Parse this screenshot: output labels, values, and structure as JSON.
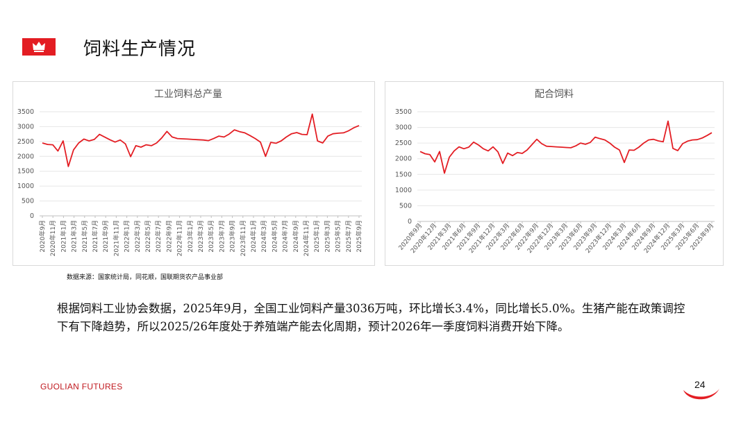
{
  "header": {
    "title": "饲料生产情况",
    "logo_icon": "crown-icon",
    "accent": "#e31d23"
  },
  "source_note": "数据来源：国家统计局，同花顺，国联期货农产品事业部",
  "paragraph": "根据饲料工业协会数据，2025年9月，全国工业饲料产量3036万吨，环比增长3.4%，同比增长5.0%。生猪产能在政策调控下有下降趋势，所以2025/26年度处于养殖端产能去化周期，预计2026年一季度饲料消费开始下降。",
  "footer": {
    "brand": "GUOLIAN FUTURES",
    "page_number": "24"
  },
  "chart_data": [
    {
      "type": "line",
      "title": "工业饲料总产量",
      "color": "#e31d23",
      "ylim": [
        0,
        3500
      ],
      "yticks": [
        0,
        500,
        1000,
        1500,
        2000,
        2500,
        3000,
        3500
      ],
      "xtick_labels": [
        "2020年9月",
        "2020年11月",
        "2021年1月",
        "2021年3月",
        "2021年5月",
        "2021年7月",
        "2021年9月",
        "2021年11月",
        "2022年1月",
        "2022年3月",
        "2022年5月",
        "2022年7月",
        "2022年9月",
        "2022年11月",
        "2023年1月",
        "2023年3月",
        "2023年5月",
        "2023年7月",
        "2023年9月",
        "2023年11月",
        "2024年1月",
        "2024年3月",
        "2024年5月",
        "2024年7月",
        "2024年9月",
        "2024年11月",
        "2025年1月",
        "2025年3月",
        "2025年5月",
        "2025年7月",
        "2025年9月"
      ],
      "values": [
        2450,
        2400,
        2390,
        2180,
        2520,
        1660,
        2220,
        2450,
        2580,
        2520,
        2570,
        2740,
        2650,
        2560,
        2480,
        2550,
        2420,
        1990,
        2360,
        2310,
        2390,
        2360,
        2450,
        2620,
        2840,
        2650,
        2600,
        2590,
        2580,
        2570,
        2560,
        2550,
        2530,
        2600,
        2680,
        2650,
        2750,
        2890,
        2830,
        2790,
        2700,
        2600,
        2480,
        2000,
        2470,
        2440,
        2520,
        2650,
        2760,
        2800,
        2740,
        2730,
        3420,
        2520,
        2450,
        2680,
        2760,
        2780,
        2790,
        2860,
        2960,
        3036
      ]
    },
    {
      "type": "line",
      "title": "配合饲料",
      "color": "#e31d23",
      "ylim": [
        0,
        3500
      ],
      "yticks": [
        0,
        500,
        1000,
        1500,
        2000,
        2500,
        3000,
        3500
      ],
      "xtick_labels": [
        "2020年9月",
        "2020年12月",
        "2021年3月",
        "2021年6月",
        "2021年9月",
        "2021年12月",
        "2022年3月",
        "2022年6月",
        "2022年9月",
        "2022年12月",
        "2023年3月",
        "2023年6月",
        "2023年9月",
        "2023年12月",
        "2024年3月",
        "2024年6月",
        "2024年9月",
        "2024年12月",
        "2025年3月",
        "2025年6月",
        "2025年9月"
      ],
      "values": [
        2230,
        2160,
        2130,
        1900,
        2230,
        1540,
        2050,
        2250,
        2380,
        2320,
        2370,
        2530,
        2440,
        2320,
        2250,
        2380,
        2220,
        1850,
        2180,
        2100,
        2200,
        2170,
        2280,
        2450,
        2620,
        2480,
        2400,
        2390,
        2380,
        2370,
        2360,
        2350,
        2410,
        2500,
        2460,
        2520,
        2690,
        2640,
        2600,
        2500,
        2370,
        2280,
        1880,
        2280,
        2270,
        2370,
        2500,
        2600,
        2620,
        2570,
        2540,
        3200,
        2330,
        2260,
        2480,
        2560,
        2600,
        2610,
        2660,
        2740,
        2830
      ]
    }
  ]
}
